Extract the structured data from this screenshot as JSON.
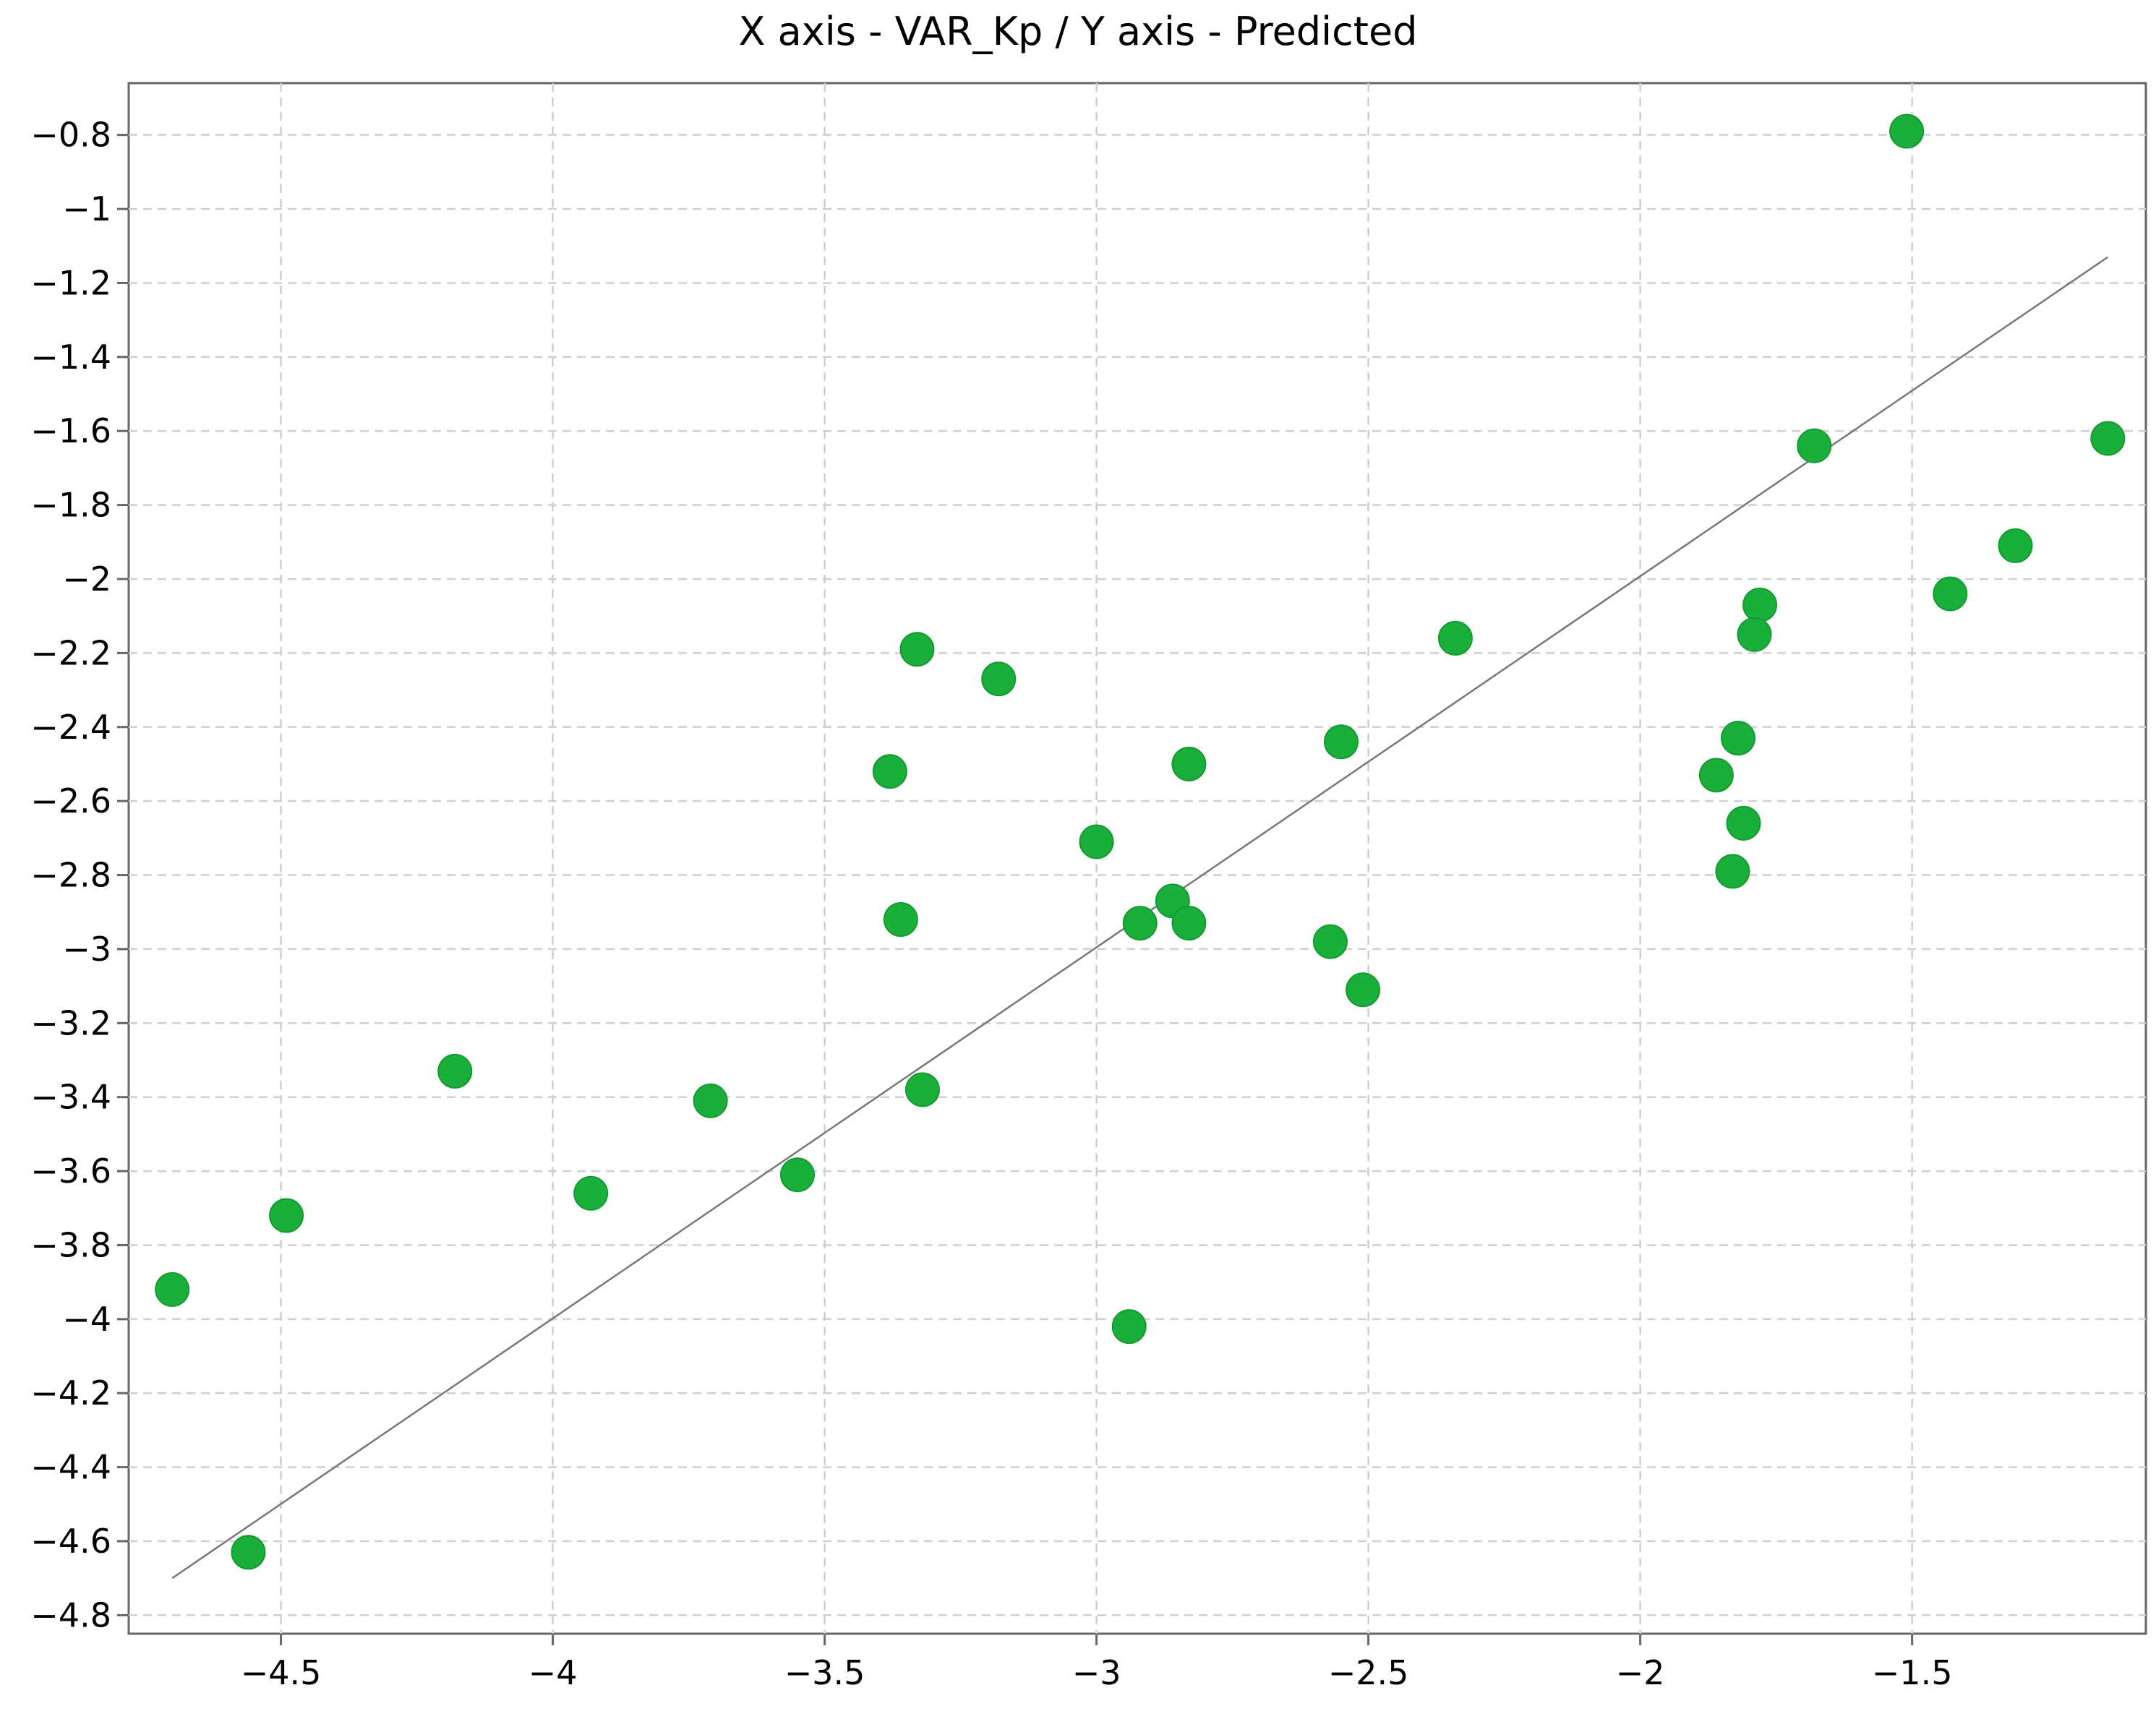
{
  "chart_data": {
    "type": "scatter",
    "title": "X axis - VAR_Kp / Y axis - Predicted",
    "xlabel": "",
    "ylabel": "",
    "xlim": [
      -4.78,
      -1.07
    ],
    "ylim": [
      -4.85,
      -0.66
    ],
    "x_ticks": [
      -4.5,
      -4,
      -3.5,
      -3,
      -2.5,
      -2,
      -1.5
    ],
    "x_tick_labels": [
      "−4.5",
      "−4",
      "−3.5",
      "−3",
      "−2.5",
      "−2",
      "−1.5"
    ],
    "y_ticks": [
      -0.8,
      -1,
      -1.2,
      -1.4,
      -1.6,
      -1.8,
      -2,
      -2.2,
      -2.4,
      -2.6,
      -2.8,
      -3,
      -3.2,
      -3.4,
      -3.6,
      -3.8,
      -4,
      -4.2,
      -4.4,
      -4.6,
      -4.8
    ],
    "y_tick_labels": [
      "−0.8",
      "−1",
      "−1.2",
      "−1.4",
      "−1.6",
      "−1.8",
      "−2",
      "−2.2",
      "−2.4",
      "−2.6",
      "−2.8",
      "−3",
      "−3.2",
      "−3.4",
      "−3.6",
      "−3.8",
      "−4",
      "−4.2",
      "−4.4",
      "−4.6",
      "−4.8"
    ],
    "grid": true,
    "marker_color": "#1aaf3a",
    "line_color": "#777777",
    "fit_line": {
      "x": [
        -4.7,
        -1.14
      ],
      "y": [
        -4.7,
        -1.13
      ]
    },
    "points": [
      {
        "x": -1.51,
        "y": -0.79
      },
      {
        "x": -1.14,
        "y": -1.62
      },
      {
        "x": -1.68,
        "y": -1.64
      },
      {
        "x": -1.31,
        "y": -1.91
      },
      {
        "x": -1.43,
        "y": -2.04
      },
      {
        "x": -1.78,
        "y": -2.07
      },
      {
        "x": -1.79,
        "y": -2.15
      },
      {
        "x": -2.34,
        "y": -2.16
      },
      {
        "x": -3.33,
        "y": -2.19
      },
      {
        "x": -3.18,
        "y": -2.27
      },
      {
        "x": -1.82,
        "y": -2.43
      },
      {
        "x": -2.55,
        "y": -2.44
      },
      {
        "x": -2.83,
        "y": -2.5
      },
      {
        "x": -3.38,
        "y": -2.52
      },
      {
        "x": -1.86,
        "y": -2.53
      },
      {
        "x": -1.81,
        "y": -2.66
      },
      {
        "x": -3.0,
        "y": -2.71
      },
      {
        "x": -1.83,
        "y": -2.79
      },
      {
        "x": -2.86,
        "y": -2.87
      },
      {
        "x": -3.36,
        "y": -2.92
      },
      {
        "x": -2.92,
        "y": -2.93
      },
      {
        "x": -2.83,
        "y": -2.93
      },
      {
        "x": -2.57,
        "y": -2.98
      },
      {
        "x": -2.51,
        "y": -3.11
      },
      {
        "x": -4.18,
        "y": -3.33
      },
      {
        "x": -3.32,
        "y": -3.38
      },
      {
        "x": -3.71,
        "y": -3.41
      },
      {
        "x": -3.55,
        "y": -3.61
      },
      {
        "x": -3.93,
        "y": -3.66
      },
      {
        "x": -4.49,
        "y": -3.72
      },
      {
        "x": -4.7,
        "y": -3.92
      },
      {
        "x": -2.94,
        "y": -4.02
      },
      {
        "x": -4.56,
        "y": -4.63
      }
    ]
  }
}
